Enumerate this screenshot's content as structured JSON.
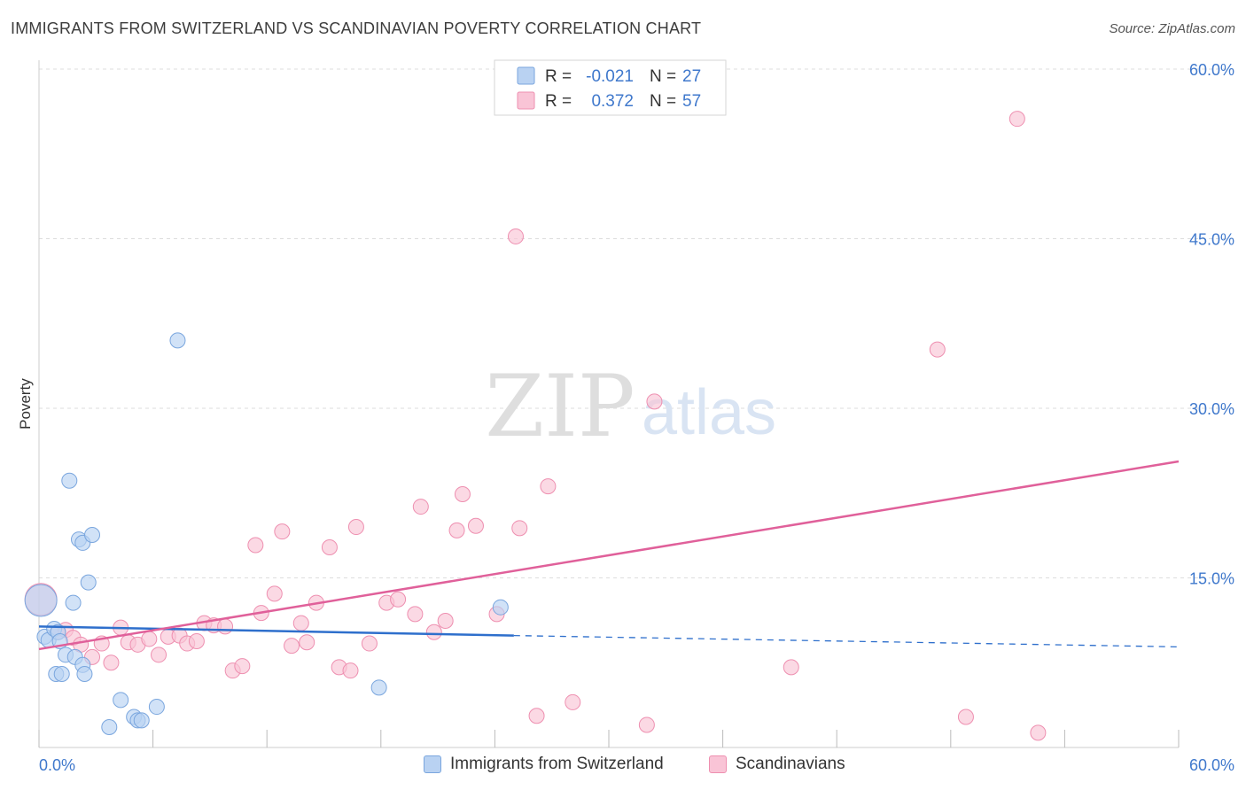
{
  "header": {
    "title": "IMMIGRANTS FROM SWITZERLAND VS SCANDINAVIAN POVERTY CORRELATION CHART",
    "source": "Source: ZipAtlas.com"
  },
  "watermark": {
    "zip": "ZIP",
    "atlas": "atlas"
  },
  "colors": {
    "blue_fill": "#b9d2f2",
    "blue_stroke": "#7aa6de",
    "blue_line": "#2e6fcc",
    "pink_fill": "#f9c4d6",
    "pink_stroke": "#ee8fb0",
    "pink_line": "#e0609a",
    "axis_text": "#3f78cc",
    "grid": "#dddddd"
  },
  "legend_top": [
    {
      "r_label": "R =",
      "r_value": "-0.021",
      "n_label": "N =",
      "n_value": "27"
    },
    {
      "r_label": "R =",
      "r_value": "0.372",
      "n_label": "N =",
      "n_value": "57"
    }
  ],
  "chart_data": {
    "type": "scatter",
    "title": "IMMIGRANTS FROM SWITZERLAND VS SCANDINAVIAN POVERTY CORRELATION CHART",
    "xlabel": "",
    "ylabel": "Poverty",
    "xlim": [
      0,
      60
    ],
    "ylim": [
      0,
      60
    ],
    "x_tick_labels": [
      "0.0%",
      "60.0%"
    ],
    "y_ticks": [
      15,
      30,
      45,
      60
    ],
    "y_tick_labels": [
      "15.0%",
      "30.0%",
      "45.0%",
      "60.0%"
    ],
    "grid": true,
    "legend_position": "bottom",
    "series": [
      {
        "name": "Immigrants from Switzerland",
        "color": "#b9d2f2",
        "r": -0.021,
        "n": 27,
        "trend": {
          "x0": 0,
          "y0": 10.7,
          "x1": 25,
          "y1": 9.9,
          "dashed_to_x": 60,
          "dashed_to_y": 8.9
        },
        "points": [
          [
            0.1,
            13.0
          ],
          [
            0.3,
            9.8
          ],
          [
            0.5,
            9.5
          ],
          [
            0.8,
            10.5
          ],
          [
            0.9,
            6.5
          ],
          [
            1.0,
            10.2
          ],
          [
            1.1,
            9.4
          ],
          [
            1.2,
            6.5
          ],
          [
            1.4,
            8.2
          ],
          [
            1.6,
            23.6
          ],
          [
            1.8,
            12.8
          ],
          [
            1.9,
            8.0
          ],
          [
            2.1,
            18.4
          ],
          [
            2.3,
            7.3
          ],
          [
            2.3,
            18.1
          ],
          [
            2.4,
            6.5
          ],
          [
            2.6,
            14.6
          ],
          [
            2.8,
            18.8
          ],
          [
            3.7,
            1.8
          ],
          [
            4.3,
            4.2
          ],
          [
            5.0,
            2.7
          ],
          [
            5.2,
            2.4
          ],
          [
            5.4,
            2.4
          ],
          [
            6.2,
            3.6
          ],
          [
            7.3,
            36.0
          ],
          [
            17.9,
            5.3
          ],
          [
            24.3,
            12.4
          ]
        ]
      },
      {
        "name": "Scandinavians",
        "color": "#f9c4d6",
        "r": 0.372,
        "n": 57,
        "trend": {
          "x0": 0,
          "y0": 8.7,
          "x1": 60,
          "y1": 25.3
        },
        "points": [
          [
            0.1,
            13.1
          ],
          [
            1.0,
            10.2
          ],
          [
            1.4,
            10.4
          ],
          [
            1.8,
            9.7
          ],
          [
            2.2,
            9.1
          ],
          [
            2.8,
            8.0
          ],
          [
            3.3,
            9.2
          ],
          [
            3.8,
            7.5
          ],
          [
            4.3,
            10.6
          ],
          [
            4.7,
            9.3
          ],
          [
            5.2,
            9.1
          ],
          [
            5.8,
            9.6
          ],
          [
            6.3,
            8.2
          ],
          [
            6.8,
            9.8
          ],
          [
            7.4,
            9.9
          ],
          [
            7.8,
            9.2
          ],
          [
            8.3,
            9.4
          ],
          [
            8.7,
            11.0
          ],
          [
            9.2,
            10.8
          ],
          [
            9.8,
            10.7
          ],
          [
            10.2,
            6.8
          ],
          [
            10.7,
            7.2
          ],
          [
            11.4,
            17.9
          ],
          [
            11.7,
            11.9
          ],
          [
            12.4,
            13.6
          ],
          [
            12.8,
            19.1
          ],
          [
            13.3,
            9.0
          ],
          [
            13.8,
            11.0
          ],
          [
            14.1,
            9.3
          ],
          [
            14.6,
            12.8
          ],
          [
            15.3,
            17.7
          ],
          [
            15.8,
            7.1
          ],
          [
            16.4,
            6.8
          ],
          [
            16.7,
            19.5
          ],
          [
            17.4,
            9.2
          ],
          [
            18.3,
            12.8
          ],
          [
            18.9,
            13.1
          ],
          [
            19.8,
            11.8
          ],
          [
            20.1,
            21.3
          ],
          [
            20.8,
            10.2
          ],
          [
            21.4,
            11.2
          ],
          [
            22.0,
            19.2
          ],
          [
            22.3,
            22.4
          ],
          [
            23.0,
            19.6
          ],
          [
            24.1,
            11.8
          ],
          [
            25.1,
            45.2
          ],
          [
            25.3,
            19.4
          ],
          [
            26.2,
            2.8
          ],
          [
            26.8,
            23.1
          ],
          [
            28.1,
            4.0
          ],
          [
            32.0,
            2.0
          ],
          [
            32.4,
            30.6
          ],
          [
            39.6,
            7.1
          ],
          [
            47.3,
            35.2
          ],
          [
            48.8,
            2.7
          ],
          [
            51.5,
            55.6
          ],
          [
            52.6,
            1.3
          ]
        ]
      }
    ]
  }
}
